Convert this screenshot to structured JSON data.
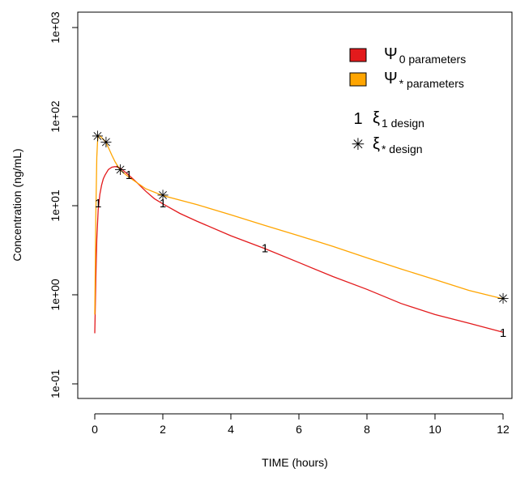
{
  "chart_data": {
    "type": "line",
    "xlabel": "TIME (hours)",
    "ylabel": "Concentration (ng/mL)",
    "xlim": [
      0,
      12
    ],
    "ylim": [
      0.1,
      1000
    ],
    "yscale": "log",
    "grid": false,
    "legend_position": "top-right",
    "xticks": [
      0,
      2,
      4,
      6,
      8,
      10,
      12
    ],
    "xtick_labels": [
      "0",
      "2",
      "4",
      "6",
      "8",
      "10",
      "12"
    ],
    "yticks": [
      0.1,
      1,
      10,
      100,
      1000
    ],
    "ytick_labels": [
      "1e-01",
      "1e+00",
      "1e+01",
      "1e+02",
      "1e+03"
    ],
    "series": [
      {
        "name": "Ψ0 parameters",
        "legend_main": "Ψ",
        "legend_sub": "0 parameters",
        "color": "#e31a1c",
        "x": [
          0,
          0.03,
          0.06,
          0.1,
          0.15,
          0.2,
          0.25,
          0.3,
          0.4,
          0.5,
          0.6,
          0.7,
          0.8,
          1,
          1.25,
          1.5,
          1.75,
          2,
          2.5,
          3,
          4,
          5,
          6,
          7,
          8,
          9,
          10,
          11,
          12
        ],
        "y": [
          0.37,
          1.5,
          4.2,
          9,
          13.5,
          17,
          20,
          22,
          25.5,
          27,
          27.5,
          27,
          25.5,
          22,
          18,
          14.5,
          12,
          10.5,
          8.2,
          6.7,
          4.6,
          3.3,
          2.3,
          1.6,
          1.15,
          0.8,
          0.6,
          0.48,
          0.38
        ]
      },
      {
        "name": "Ψ* parameters",
        "legend_main": "Ψ",
        "legend_sub": "* parameters",
        "color": "#ffa500",
        "x": [
          0,
          0.03,
          0.06,
          0.08,
          0.1,
          0.15,
          0.2,
          0.3,
          0.4,
          0.5,
          0.6,
          0.75,
          1,
          1.25,
          1.5,
          2,
          3,
          4,
          5,
          6,
          7,
          8,
          9,
          10,
          11,
          12
        ],
        "y": [
          0.6,
          8,
          35,
          52,
          60,
          61,
          58,
          53,
          45,
          37,
          31,
          25,
          21,
          18,
          15.5,
          13,
          10.3,
          7.9,
          6.0,
          4.6,
          3.5,
          2.6,
          1.95,
          1.48,
          1.12,
          0.9
        ]
      }
    ],
    "designs": [
      {
        "name": "ξ1 design",
        "legend_main": "ξ",
        "legend_sub": "1 design",
        "marker": "1",
        "points": [
          {
            "x": 0.1,
            "y": 10.5
          },
          {
            "x": 1,
            "y": 22
          },
          {
            "x": 2,
            "y": 10.5
          },
          {
            "x": 5,
            "y": 3.3
          },
          {
            "x": 12,
            "y": 0.37
          }
        ]
      },
      {
        "name": "ξ* design",
        "legend_main": "ξ",
        "legend_sub": "* design",
        "marker": "✳",
        "points": [
          {
            "x": 0.08,
            "y": 60
          },
          {
            "x": 0.33,
            "y": 51
          },
          {
            "x": 0.75,
            "y": 25
          },
          {
            "x": 2,
            "y": 13
          },
          {
            "x": 12,
            "y": 0.9
          }
        ]
      }
    ]
  }
}
